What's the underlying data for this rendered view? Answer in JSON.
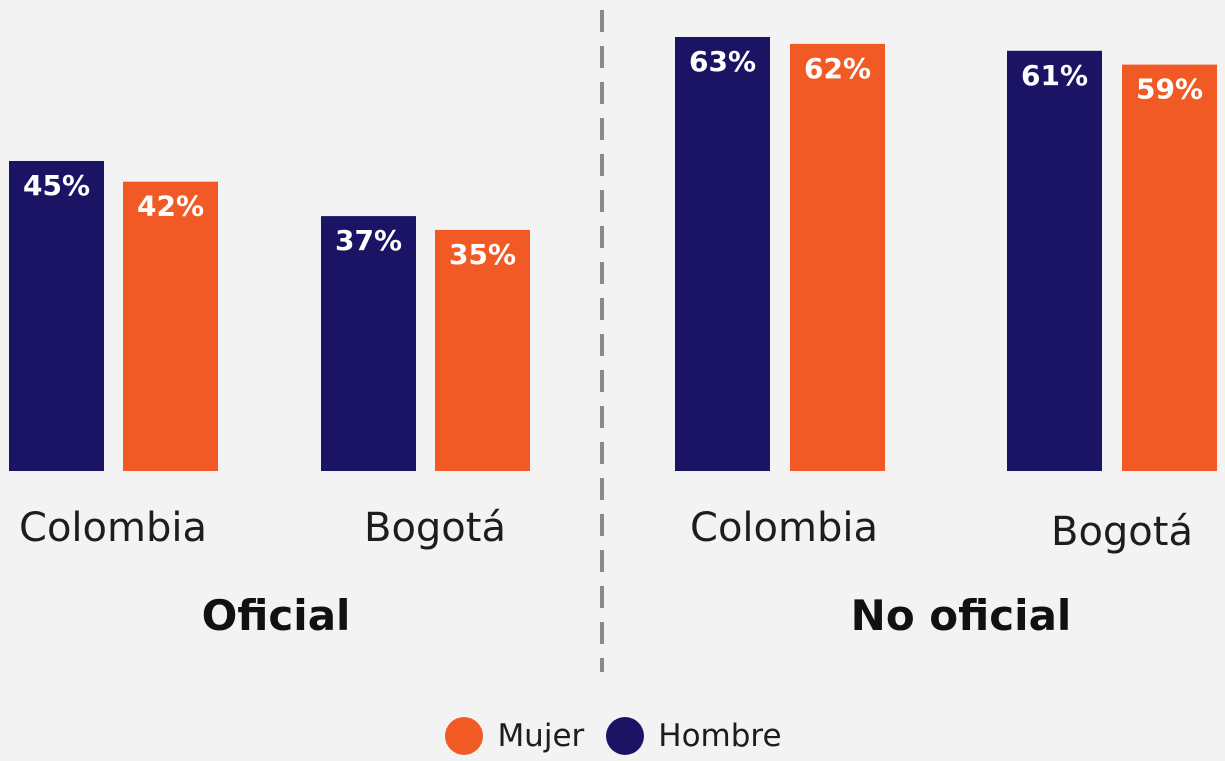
{
  "chart_data": {
    "type": "bar",
    "panels": [
      {
        "label": "Oficial",
        "categories": [
          "Colombia",
          "Bogotá"
        ],
        "series": [
          {
            "name": "Hombre",
            "values": [
              45,
              37
            ],
            "labels": [
              "45%",
              "37%"
            ]
          },
          {
            "name": "Mujer",
            "values": [
              42,
              35
            ],
            "labels": [
              "42%",
              "35%"
            ]
          }
        ]
      },
      {
        "label": "No oficial",
        "categories": [
          "Colombia",
          "Bogotá"
        ],
        "series": [
          {
            "name": "Hombre",
            "values": [
              63,
              61
            ],
            "labels": [
              "63%",
              "61%"
            ]
          },
          {
            "name": "Mujer",
            "values": [
              62,
              59
            ],
            "labels": [
              "62%",
              "59%"
            ]
          }
        ]
      }
    ],
    "legend": [
      {
        "name": "Mujer",
        "color": "#f15a24"
      },
      {
        "name": "Hombre",
        "color": "#1b1464"
      }
    ],
    "colors": {
      "Hombre": "#1b1464",
      "Mujer": "#f15a24"
    },
    "value_unit": "%",
    "ylim": [
      0,
      63
    ],
    "grid": false,
    "legend_position": "bottom",
    "divider": "dashed-vertical"
  }
}
